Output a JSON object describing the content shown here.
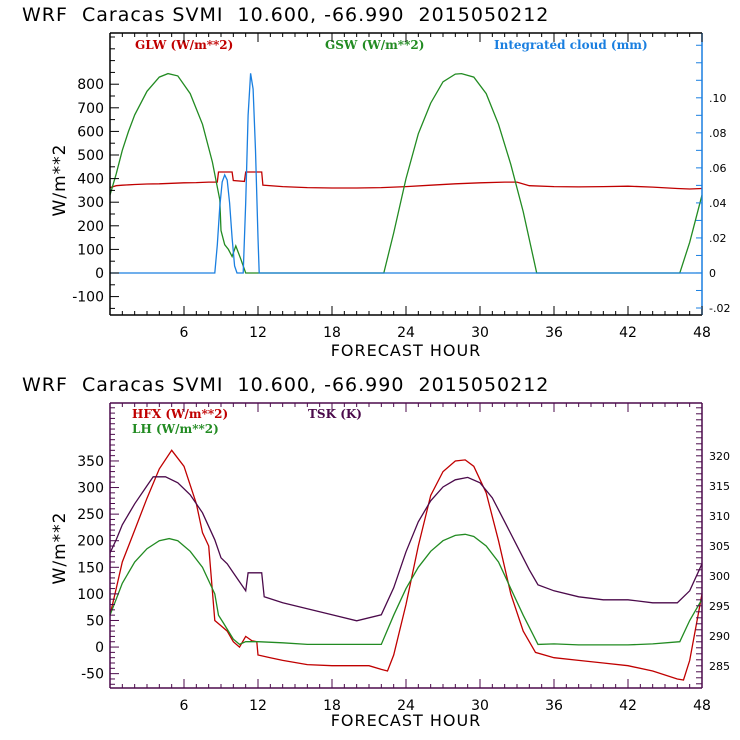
{
  "chart_data": [
    {
      "type": "line",
      "title": "WRF  Caracas SVMI  10.600, -66.990  2015050212",
      "xlabel": "FORECAST HOUR",
      "ylabel": "W/m**2",
      "xlim": [
        0,
        48
      ],
      "ylim": [
        -178,
        1017
      ],
      "y2lim": [
        -0.024,
        0.137
      ],
      "xticks": [
        "6",
        "12",
        "18",
        "24",
        "30",
        "36",
        "42",
        "48"
      ],
      "yticks": [
        "800",
        "700",
        "600",
        "500",
        "400",
        "300",
        "200",
        "100",
        "0",
        "-100"
      ],
      "y2ticks": [
        ".10",
        ".08",
        ".06",
        ".04",
        ".02",
        "0",
        "-.02"
      ],
      "axis_color": "#1a7fe0",
      "series": [
        {
          "name": "GLW (W/m**2)",
          "axis": "left",
          "color": "#c00000",
          "x": [
            0,
            0.5,
            1,
            2,
            3,
            4,
            5,
            6,
            7,
            8,
            8.7,
            8.8,
            9.9,
            10.0,
            10.9,
            11.0,
            12.3,
            12.4,
            14,
            16,
            18,
            20,
            22,
            24,
            26,
            28,
            30,
            32,
            33,
            34,
            36,
            38,
            40,
            42,
            44,
            46,
            47,
            48
          ],
          "values": [
            362,
            370,
            372,
            375,
            377,
            378,
            380,
            382,
            383,
            385,
            385,
            428,
            428,
            392,
            388,
            428,
            428,
            372,
            366,
            362,
            360,
            360,
            362,
            366,
            372,
            378,
            382,
            385,
            385,
            370,
            366,
            365,
            366,
            368,
            364,
            358,
            356,
            358
          ]
        },
        {
          "name": "GSW (W/m**2)",
          "axis": "left",
          "color": "#228b22",
          "x": [
            0,
            0.5,
            1,
            1.5,
            2,
            3,
            4,
            4.7,
            5.5,
            6.5,
            7.5,
            8.3,
            8.9,
            9.0,
            9.3,
            9.6,
            9.9,
            10.2,
            10.6,
            11.0,
            12,
            14,
            16,
            18,
            20,
            22.2,
            23,
            24,
            25,
            26,
            27,
            28,
            28.5,
            29.5,
            30.5,
            31.5,
            32.5,
            33.5,
            34.6,
            36,
            40,
            44,
            46.2,
            47,
            48
          ],
          "values": [
            330,
            420,
            520,
            600,
            670,
            770,
            830,
            845,
            835,
            760,
            630,
            470,
            310,
            180,
            120,
            100,
            70,
            115,
            60,
            0,
            0,
            0,
            0,
            0,
            0,
            0,
            170,
            400,
            590,
            720,
            810,
            843,
            845,
            830,
            760,
            630,
            460,
            260,
            0,
            0,
            0,
            0,
            0,
            130,
            330
          ]
        },
        {
          "name": "Integrated cloud (mm)",
          "axis": "right",
          "color": "#1a7fe0",
          "x": [
            0,
            8.5,
            8.7,
            8.9,
            9.1,
            9.3,
            9.5,
            9.7,
            9.9,
            10.1,
            10.3,
            10.5,
            10.8,
            11.0,
            11.2,
            11.4,
            11.6,
            11.8,
            12.0,
            12.1,
            48
          ],
          "values": [
            0,
            0,
            0.016,
            0.038,
            0.052,
            0.056,
            0.053,
            0.04,
            0.02,
            0.004,
            0,
            0,
            0,
            0.04,
            0.09,
            0.114,
            0.105,
            0.07,
            0.02,
            0,
            0
          ]
        }
      ]
    },
    {
      "type": "line",
      "title": "WRF  Caracas SVMI  10.600, -66.990  2015050212",
      "xlabel": "FORECAST HOUR",
      "ylabel": "W/m**2",
      "xlim": [
        0,
        48
      ],
      "ylim": [
        -77,
        459
      ],
      "y2lim": [
        281.3,
        328.8
      ],
      "xticks": [
        "6",
        "12",
        "18",
        "24",
        "30",
        "36",
        "42",
        "48"
      ],
      "yticks": [
        "350",
        "300",
        "250",
        "200",
        "150",
        "100",
        "50",
        "0",
        "-50"
      ],
      "y2ticks": [
        "320",
        "315",
        "310",
        "305",
        "300",
        "295",
        "290",
        "285"
      ],
      "axis_color": "#4b0a4b",
      "series": [
        {
          "name": "HFX (W/m**2)",
          "axis": "left",
          "color": "#c00000",
          "x": [
            0,
            0.5,
            1,
            2,
            3,
            4,
            5,
            6,
            7,
            7.5,
            8,
            8.5,
            9,
            9.5,
            10,
            10.5,
            11,
            11.5,
            11.9,
            12,
            13,
            14,
            16,
            18,
            20,
            21,
            22,
            22.5,
            23,
            24,
            25,
            26,
            27,
            28,
            28.8,
            29.5,
            30.5,
            31.5,
            32.5,
            33.5,
            34.5,
            36,
            38,
            40,
            42,
            44,
            46,
            46.5,
            47,
            48
          ],
          "values": [
            60,
            110,
            160,
            220,
            280,
            335,
            370,
            340,
            270,
            215,
            190,
            50,
            40,
            30,
            10,
            0,
            20,
            12,
            10,
            -15,
            -20,
            -25,
            -33,
            -35,
            -35,
            -35,
            -42,
            -45,
            -15,
            80,
            190,
            285,
            330,
            350,
            352,
            340,
            290,
            200,
            100,
            30,
            -10,
            -20,
            -25,
            -30,
            -35,
            -45,
            -60,
            -62,
            -25,
            100
          ]
        },
        {
          "name": "LH (W/m**2)",
          "axis": "left",
          "color": "#228b22",
          "x": [
            0,
            0.5,
            1,
            2,
            3,
            4,
            4.8,
            5.5,
            6.5,
            7.5,
            8.5,
            8.8,
            9.2,
            9.6,
            10,
            10.5,
            11,
            12,
            14,
            16,
            18,
            20,
            22,
            23,
            24,
            25,
            26,
            27,
            28,
            28.8,
            29.5,
            30.5,
            31.5,
            32.5,
            33.5,
            34.7,
            36,
            38,
            40,
            42,
            44,
            46.2,
            47,
            48
          ],
          "values": [
            60,
            90,
            120,
            160,
            185,
            200,
            204,
            200,
            180,
            150,
            100,
            60,
            45,
            30,
            15,
            5,
            10,
            10,
            8,
            5,
            5,
            5,
            5,
            60,
            110,
            150,
            180,
            200,
            210,
            212,
            208,
            190,
            160,
            110,
            60,
            5,
            6,
            4,
            4,
            4,
            6,
            10,
            50,
            90
          ]
        },
        {
          "name": "TSK (K)",
          "axis": "right",
          "color": "#4b0a4b",
          "x": [
            0,
            0.5,
            1,
            2,
            3,
            3.5,
            4.5,
            5.5,
            6.5,
            7.5,
            8.5,
            9,
            9.5,
            10,
            10.5,
            11,
            11.2,
            12.3,
            12.5,
            14,
            16,
            18,
            20,
            22,
            23,
            24,
            25,
            26,
            27,
            28,
            29,
            30,
            31,
            32,
            33,
            34,
            34.7,
            36,
            38,
            40,
            42,
            44,
            46,
            47,
            48
          ],
          "values": [
            303.8,
            306,
            308.5,
            312,
            315,
            316.5,
            316.5,
            315.5,
            313.5,
            310.5,
            306,
            303,
            302,
            300.5,
            299,
            297.5,
            300.5,
            300.5,
            296.5,
            295.5,
            294.5,
            293.5,
            292.5,
            293.5,
            298,
            304,
            309,
            312.5,
            314.8,
            316,
            316.4,
            315.5,
            313,
            309,
            305,
            301,
            298.5,
            297.5,
            296.5,
            296,
            296,
            295.5,
            295.5,
            297.5,
            302
          ]
        }
      ]
    }
  ],
  "legends": {
    "top": [
      "GLW (W/m**2)",
      "GSW (W/m**2)",
      "Integrated cloud (mm)"
    ],
    "bottom": [
      "HFX (W/m**2)",
      "LH (W/m**2)",
      "TSK (K)"
    ]
  }
}
